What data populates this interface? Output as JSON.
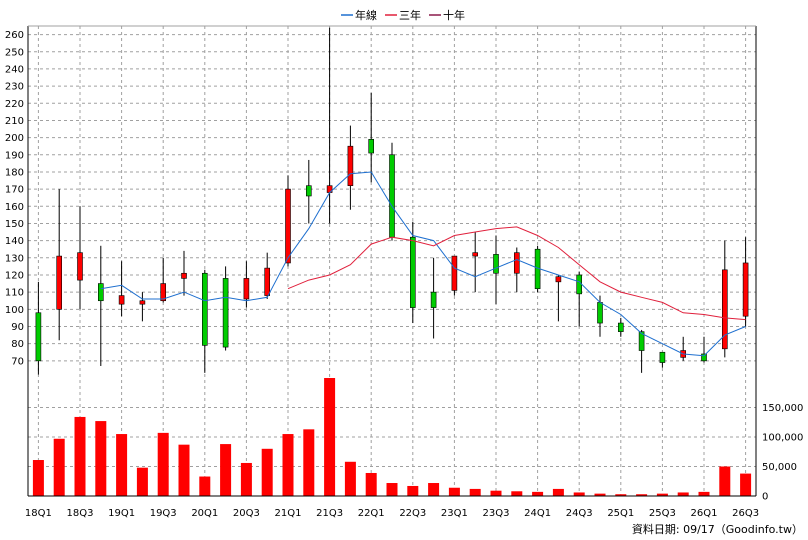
{
  "chart_data": {
    "type": "candlestick_with_volume",
    "legend": [
      {
        "name": "年線",
        "color": "#1e6fcf"
      },
      {
        "name": "三年",
        "color": "#e0203c"
      },
      {
        "name": "十年",
        "color": "#8b1a4a"
      }
    ],
    "colors": {
      "up": "#ff0000",
      "down": "#00cc00",
      "volume": "#ff0000",
      "grid": "#a0a0a0"
    },
    "grid": true,
    "price_axis": {
      "ylim": [
        60,
        265
      ],
      "ticks": [
        70,
        80,
        90,
        100,
        110,
        120,
        130,
        140,
        150,
        160,
        170,
        180,
        190,
        200,
        210,
        220,
        230,
        240,
        250,
        260
      ]
    },
    "volume_axis": {
      "ylim": [
        0,
        200000
      ],
      "ticks": [
        0,
        50000,
        100000,
        150000
      ],
      "tick_labels": [
        "0",
        "50,000",
        "100,000",
        "150,000"
      ]
    },
    "x_tick_labels": [
      "18Q1",
      "18Q3",
      "19Q1",
      "19Q3",
      "20Q1",
      "20Q3",
      "21Q1",
      "21Q3",
      "22Q1",
      "22Q3",
      "23Q1",
      "23Q3",
      "24Q1",
      "24Q3",
      "25Q1",
      "25Q3",
      "26Q1",
      "26Q3"
    ],
    "x_categories": [
      "18Q1",
      "18Q2",
      "18Q3",
      "18Q4",
      "19Q1",
      "19Q2",
      "19Q3",
      "19Q4",
      "20Q1",
      "20Q2",
      "20Q3",
      "20Q4",
      "21Q1",
      "21Q2",
      "21Q3",
      "21Q4",
      "22Q1",
      "22Q2",
      "22Q3",
      "22Q4",
      "23Q1",
      "23Q2",
      "23Q3",
      "23Q4",
      "24Q1",
      "24Q2",
      "24Q3",
      "24Q4",
      "25Q1",
      "25Q2",
      "25Q3",
      "25Q4",
      "26Q1",
      "26Q2",
      "26Q3"
    ],
    "ohlc": [
      [
        98,
        116,
        62,
        70
      ],
      [
        100,
        170,
        82,
        131
      ],
      [
        117,
        160,
        100,
        133
      ],
      [
        115,
        137,
        67,
        105
      ],
      [
        103,
        128,
        96,
        108
      ],
      [
        103,
        110,
        93,
        105
      ],
      [
        105,
        130,
        104,
        115
      ],
      [
        118,
        134,
        108,
        121
      ],
      [
        121,
        123,
        63,
        79
      ],
      [
        118,
        125,
        76,
        78
      ],
      [
        106,
        128,
        101,
        118
      ],
      [
        108,
        133,
        106,
        124
      ],
      [
        127,
        178,
        125,
        170
      ],
      [
        172,
        187,
        150,
        166
      ],
      [
        168,
        264,
        150,
        172
      ],
      [
        172,
        207,
        158,
        195
      ],
      [
        199,
        226,
        174,
        191
      ],
      [
        190,
        197,
        140,
        142
      ],
      [
        142,
        151,
        92,
        101
      ],
      [
        110,
        130,
        83,
        101
      ],
      [
        111,
        131,
        108,
        131
      ],
      [
        131,
        145,
        110,
        133
      ],
      [
        132,
        143,
        103,
        121
      ],
      [
        121,
        136,
        110,
        133
      ],
      [
        135,
        137,
        110,
        112
      ],
      [
        116,
        120,
        93,
        119
      ],
      [
        120,
        122,
        90,
        109
      ],
      [
        104,
        108,
        84,
        92
      ],
      [
        92,
        95,
        84,
        87
      ],
      [
        87,
        88,
        63,
        76
      ],
      [
        75,
        75,
        66,
        69
      ],
      [
        72,
        84,
        70,
        76
      ],
      [
        74,
        84,
        69,
        70
      ],
      [
        77,
        140,
        72,
        123
      ],
      [
        96,
        142,
        90,
        127
      ]
    ],
    "volume": [
      61000,
      97000,
      134000,
      127000,
      105000,
      48000,
      107000,
      87000,
      33000,
      88000,
      56000,
      80000,
      105000,
      113000,
      200000,
      58000,
      39000,
      22000,
      17000,
      22000,
      14000,
      12000,
      9000,
      8000,
      7000,
      12000,
      6000,
      4000,
      3000,
      3000,
      4000,
      6000,
      7000,
      50000,
      38000
    ],
    "ma_year": [
      null,
      null,
      null,
      112,
      114,
      106,
      106,
      110,
      105,
      107,
      105,
      107,
      130,
      147,
      168,
      179,
      180,
      160,
      143,
      140,
      124,
      119,
      124,
      129,
      124,
      120,
      116,
      104,
      97,
      86,
      80,
      74,
      73,
      85,
      90
    ],
    "ma_3yr": [
      null,
      null,
      null,
      null,
      null,
      null,
      null,
      null,
      null,
      null,
      null,
      null,
      112,
      117,
      120,
      126,
      138,
      142,
      140,
      137,
      143,
      145,
      147,
      148,
      143,
      136,
      126,
      116,
      110,
      107,
      104,
      98,
      97,
      95,
      94
    ]
  },
  "source_label": "資料日期: 09/17（Goodinfo.tw）"
}
